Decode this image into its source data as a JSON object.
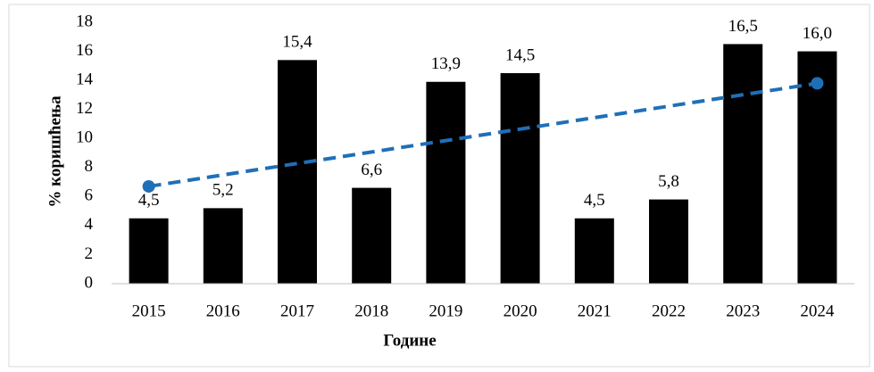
{
  "chart_data": {
    "type": "bar",
    "x_label": "Године",
    "y_label": "% коришћења",
    "categories": [
      "2015",
      "2016",
      "2017",
      "2018",
      "2019",
      "2020",
      "2021",
      "2022",
      "2023",
      "2024"
    ],
    "values": [
      4.5,
      5.2,
      15.4,
      6.6,
      13.9,
      14.5,
      4.5,
      5.8,
      16.5,
      16
    ],
    "value_labels": [
      "4,5",
      "5,2",
      "15,4",
      "6,6",
      "13,9",
      "14,5",
      "4,5",
      "5,8",
      "16,5",
      "16,0"
    ],
    "color": "#000000",
    "trend_values": [
      6.7,
      13.8
    ],
    "trend_color": "#1f6fb8",
    "ylim": [
      0,
      18
    ],
    "yticks": [
      0,
      2,
      4,
      6,
      8,
      10,
      12,
      14,
      16,
      18
    ],
    "grid": false
  }
}
